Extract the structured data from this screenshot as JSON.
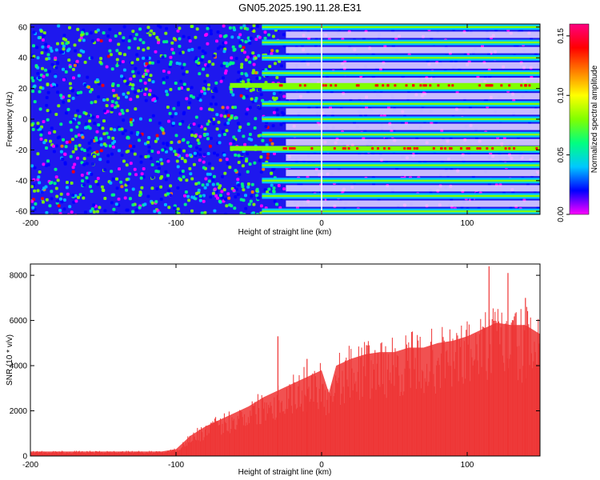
{
  "title": "GN05.2025.190.11.28.E31",
  "colors": {
    "spectrogram_background": "#1e18ee",
    "snr_fill": "#ee3333",
    "colorbar_stops": [
      "#ff00ff",
      "#0000ff",
      "#00c8ff",
      "#00ff80",
      "#80ff00",
      "#ffff00",
      "#ff8000",
      "#ff0000",
      "#ff0080"
    ]
  },
  "chart_data": [
    {
      "type": "heatmap",
      "title": "GN05.2025.190.11.28.E31",
      "xlabel": "Height of straight line (km)",
      "ylabel": "Frequency (Hz)",
      "xlim": [
        -200,
        150
      ],
      "ylim": [
        -62,
        62
      ],
      "x_ticks": [
        "-200",
        "-100",
        "0",
        "100"
      ],
      "y_ticks": [
        "-60",
        "-40",
        "-20",
        "0",
        "20",
        "40",
        "60"
      ],
      "colorbar": {
        "label": "Normalized spectral amplitude",
        "range": [
          0,
          0.16
        ],
        "ticks": [
          "0.00",
          "0.05",
          "0.10",
          "0.15"
        ]
      },
      "harmonic_bands_hz": [
        -60,
        -50,
        -40,
        -30,
        -20,
        -10,
        0,
        10,
        20,
        30,
        40,
        50,
        60
      ],
      "strong_bands_hz": [
        -19,
        22
      ],
      "onset_height_km": -30
    },
    {
      "type": "area",
      "xlabel": "Height of straight line (km)",
      "ylabel": "SNR (10 * v/v)",
      "xlim": [
        -200,
        150
      ],
      "ylim": [
        0,
        8500
      ],
      "x_ticks": [
        "-200",
        "-100",
        "0",
        "100"
      ],
      "y_ticks": [
        "0",
        "2000",
        "4000",
        "6000",
        "8000"
      ],
      "x": [
        -200,
        -150,
        -110,
        -100,
        -90,
        -80,
        -70,
        -60,
        -50,
        -40,
        -30,
        -20,
        -10,
        0,
        5,
        10,
        20,
        30,
        40,
        50,
        60,
        70,
        80,
        90,
        100,
        110,
        120,
        130,
        140,
        150
      ],
      "y": [
        200,
        200,
        200,
        300,
        900,
        1300,
        1600,
        1900,
        2200,
        2600,
        2900,
        3200,
        3500,
        3800,
        2800,
        4000,
        4300,
        4500,
        4600,
        4600,
        4800,
        4800,
        5000,
        5100,
        5300,
        5600,
        5900,
        5800,
        5800,
        5400
      ],
      "peaks": [
        {
          "x": -30,
          "y": 5300
        },
        {
          "x": -10,
          "y": 4300
        },
        {
          "x": 115,
          "y": 8400
        },
        {
          "x": 128,
          "y": 8100
        },
        {
          "x": 140,
          "y": 7000
        }
      ]
    }
  ]
}
